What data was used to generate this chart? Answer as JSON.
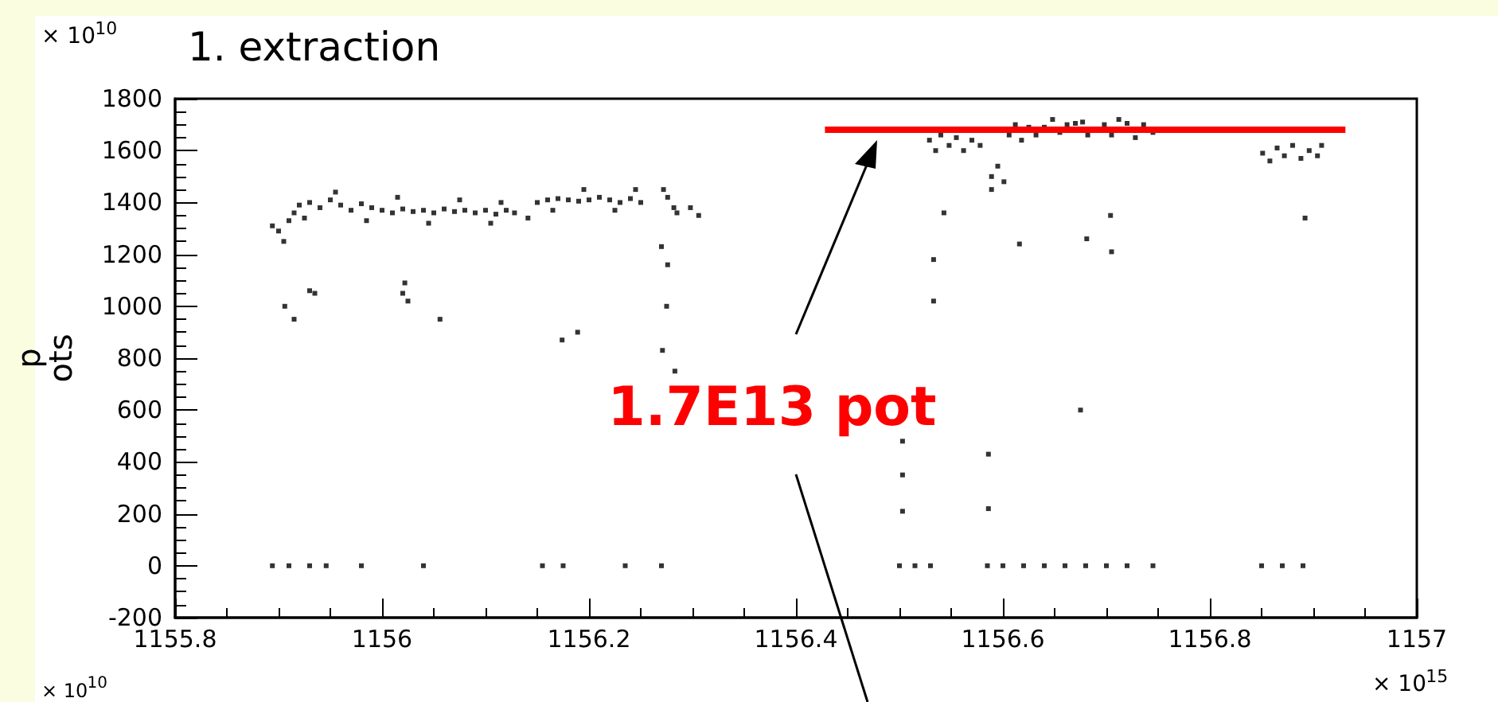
{
  "chart_data": {
    "type": "scatter",
    "title": "1. extraction",
    "ylabel": "p\nots",
    "annotations": [
      "× 10$^{10}$",
      "1.7E13 pot",
      "× 10$^{15}$",
      "× 10$^{10}$"
    ],
    "xlim": [
      1155.8,
      1157
    ],
    "xticks": [
      1155.8,
      1156,
      1156.2,
      1156.4,
      1156.6,
      1156.8,
      1157
    ],
    "ylim": [
      -200,
      1800
    ],
    "yticks": [
      -200,
      0,
      200,
      400,
      600,
      800,
      1000,
      1200,
      1400,
      1600,
      1800
    ],
    "grid": false,
    "series": [
      {
        "color": "#000000",
        "marker": "square",
        "x": [
          1155.894,
          1155.9,
          1155.905,
          1155.91,
          1155.915,
          1155.92,
          1155.93,
          1155.94,
          1155.95,
          1155.96,
          1155.97,
          1155.98,
          1155.99,
          1156.0,
          1156.01,
          1156.02,
          1156.03,
          1156.04,
          1156.05,
          1156.06,
          1156.07,
          1156.08,
          1156.09,
          1156.1,
          1156.11,
          1156.12,
          1156.128,
          1156.141,
          1156.15,
          1156.16,
          1156.17,
          1156.18,
          1156.19,
          1156.2,
          1156.21,
          1156.22,
          1156.23,
          1156.24,
          1156.25,
          1156.272,
          1156.276,
          1156.282,
          1156.285,
          1156.298,
          1156.306,
          1155.925,
          1155.955,
          1155.985,
          1156.015,
          1156.045,
          1156.075,
          1156.105,
          1156.115,
          1156.165,
          1156.195,
          1156.225,
          1156.245,
          1155.906,
          1155.915,
          1155.93,
          1155.935,
          1156.02,
          1156.022,
          1156.025,
          1156.056,
          1156.174,
          1156.189,
          1156.276,
          1156.271,
          1156.283,
          1156.275,
          1156.27,
          1155.894,
          1155.91,
          1155.93,
          1155.946,
          1155.98,
          1156.04,
          1156.155,
          1156.175,
          1156.235,
          1156.27,
          1156.529,
          1156.535,
          1156.54,
          1156.548,
          1156.555,
          1156.562,
          1156.57,
          1156.578,
          1156.543,
          1156.533,
          1156.533,
          1156.589,
          1156.589,
          1156.601,
          1156.595,
          1156.606,
          1156.612,
          1156.618,
          1156.625,
          1156.632,
          1156.616,
          1156.64,
          1156.648,
          1156.655,
          1156.662,
          1156.67,
          1156.677,
          1156.682,
          1156.681,
          1156.675,
          1156.698,
          1156.705,
          1156.712,
          1156.72,
          1156.728,
          1156.736,
          1156.745,
          1156.704,
          1156.705,
          1156.851,
          1156.858,
          1156.865,
          1156.872,
          1156.88,
          1156.888,
          1156.896,
          1156.904,
          1156.908,
          1156.892,
          1156.503,
          1156.503,
          1156.503,
          1156.586,
          1156.586,
          1156.5,
          1156.515,
          1156.53,
          1156.585,
          1156.6,
          1156.62,
          1156.64,
          1156.66,
          1156.68,
          1156.7,
          1156.72,
          1156.745,
          1156.85,
          1156.87,
          1156.89
        ],
        "values": [
          1310,
          1290,
          1250,
          1330,
          1360,
          1390,
          1400,
          1380,
          1410,
          1390,
          1370,
          1395,
          1380,
          1370,
          1360,
          1375,
          1365,
          1370,
          1360,
          1375,
          1365,
          1370,
          1360,
          1370,
          1355,
          1370,
          1360,
          1340,
          1400,
          1410,
          1415,
          1410,
          1405,
          1410,
          1420,
          1410,
          1400,
          1415,
          1400,
          1450,
          1420,
          1380,
          1360,
          1380,
          1350,
          1340,
          1440,
          1330,
          1420,
          1320,
          1410,
          1320,
          1400,
          1370,
          1450,
          1370,
          1450,
          1000,
          950,
          1060,
          1050,
          1050,
          1090,
          1020,
          950,
          870,
          900,
          1160,
          830,
          750,
          1000,
          1230,
          0,
          0,
          0,
          0,
          0,
          0,
          0,
          0,
          0,
          0,
          1640,
          1600,
          1660,
          1620,
          1650,
          1600,
          1640,
          1620,
          1360,
          1180,
          1020,
          1500,
          1450,
          1480,
          1540,
          1660,
          1700,
          1640,
          1690,
          1660,
          1240,
          1690,
          1720,
          1670,
          1700,
          1705,
          1710,
          1660,
          1260,
          600,
          1700,
          1660,
          1720,
          1705,
          1650,
          1700,
          1670,
          1350,
          1210,
          1590,
          1560,
          1610,
          1580,
          1620,
          1570,
          1600,
          1580,
          1620,
          1340,
          480,
          350,
          210,
          430,
          220,
          0,
          0,
          0,
          0,
          0,
          0,
          0,
          0,
          0,
          0,
          0,
          0,
          0,
          0,
          0
        ]
      },
      {
        "type": "line",
        "color": "#ff0000",
        "x": [
          1156.428,
          1156.931
        ],
        "values": [
          1680,
          1680
        ]
      }
    ]
  }
}
